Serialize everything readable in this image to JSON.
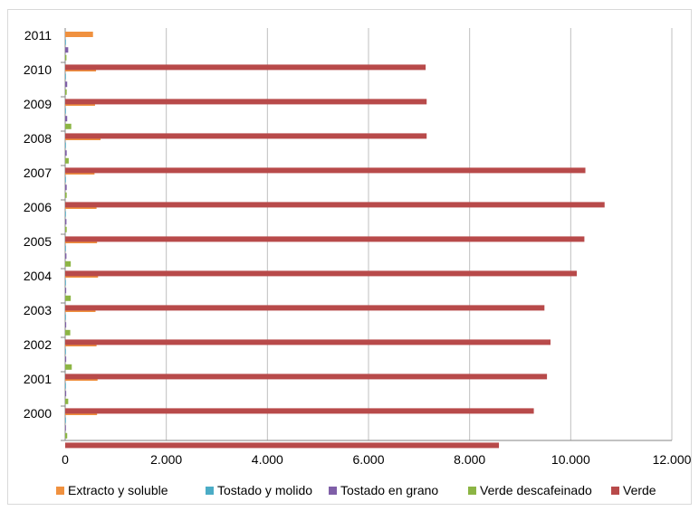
{
  "chart_data": {
    "type": "bar",
    "orientation": "horizontal",
    "categories": [
      "2000",
      "2001",
      "2002",
      "2003",
      "2004",
      "2005",
      "2006",
      "2007",
      "2008",
      "2009",
      "2010",
      "2011"
    ],
    "series": [
      {
        "name": "Extracto y soluble",
        "color": "#f0913f",
        "values": [
          630,
          640,
          620,
          600,
          650,
          630,
          620,
          580,
          700,
          590,
          610,
          550
        ]
      },
      {
        "name": "Tostado y molido",
        "color": "#4bacc6",
        "values": [
          5,
          8,
          10,
          8,
          10,
          8,
          6,
          6,
          8,
          8,
          8,
          8
        ]
      },
      {
        "name": "Tostado en grano",
        "color": "#7f5fa8",
        "values": [
          15,
          20,
          20,
          20,
          20,
          25,
          25,
          30,
          30,
          40,
          40,
          60
        ]
      },
      {
        "name": "Verde descafeinado",
        "color": "#8cb544",
        "values": [
          40,
          60,
          130,
          100,
          110,
          110,
          30,
          30,
          70,
          120,
          30,
          25
        ]
      },
      {
        "name": "Verde",
        "color": "#b84a4a",
        "values": [
          8580,
          9270,
          9530,
          9600,
          9480,
          10120,
          10270,
          10670,
          10290,
          7150,
          7150,
          7130
        ]
      }
    ],
    "xlim": [
      0,
      12000
    ],
    "x_ticks": [
      "0",
      "2.000",
      "4.000",
      "6.000",
      "8.000",
      "10.000",
      "12.000"
    ],
    "grid": true,
    "legend_position": "bottom"
  }
}
